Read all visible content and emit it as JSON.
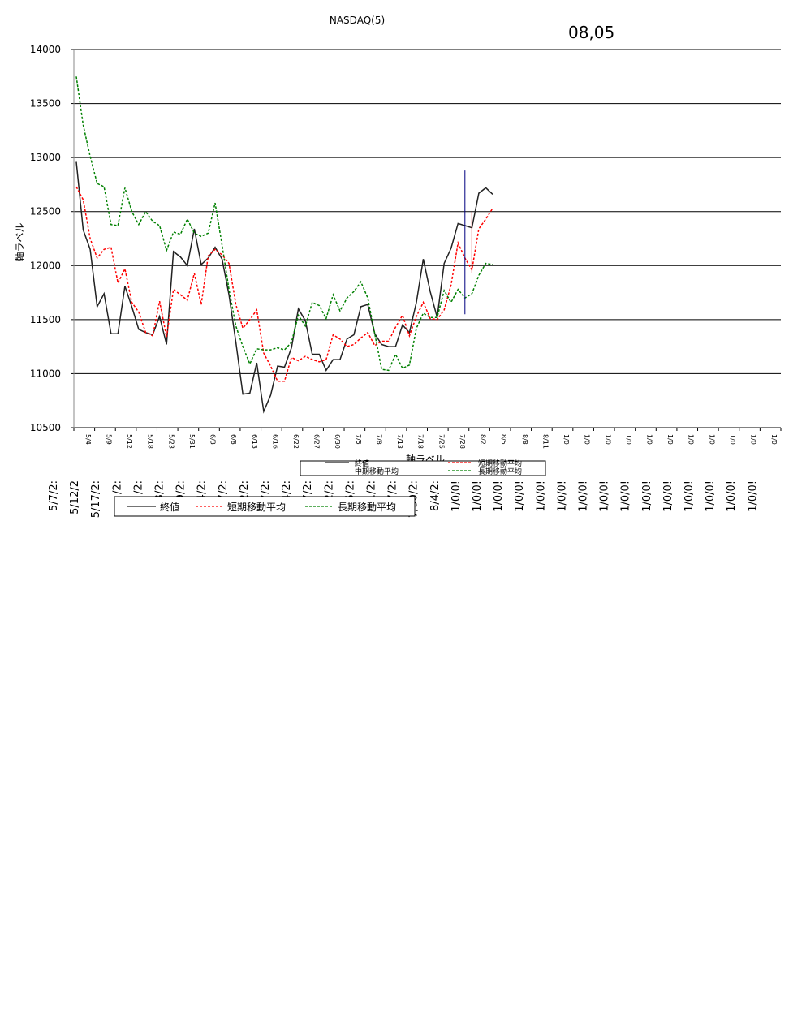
{
  "title": "NASDAQ(5)",
  "date_label": "08,05",
  "chart_data": {
    "type": "line",
    "title": "NASDAQ(5)",
    "ylabel": "軸ラベル",
    "xlabel": "軸ラベル",
    "ylim": [
      10500,
      14000
    ],
    "yticks": [
      "14000",
      "13500",
      "13000",
      "12500",
      "12000",
      "11500",
      "11000",
      "10500"
    ],
    "grid": true,
    "legend_position": "bottom",
    "x_tick_labels": [
      "5/4",
      "5/9",
      "5/12",
      "5/18",
      "5/23",
      "5/31",
      "6/3",
      "6/8",
      "6/13",
      "6/16",
      "6/22",
      "6/27",
      "6/30",
      "7/5",
      "7/8",
      "7/13",
      "7/18",
      "7/25",
      "7/28",
      "8/2",
      "8/5",
      "8/8",
      "8/11",
      "1/0",
      "1/0",
      "1/0",
      "1/0",
      "1/0",
      "1/0",
      "1/0",
      "1/0",
      "1/0",
      "1/0",
      "1/0"
    ],
    "bottom_tick_labels": [
      "5/7/2:",
      "5/12/2",
      "5/17/2:",
      "/2:",
      "/2:",
      "3/2:",
      "9/2:",
      "4/2:",
      "7/2:",
      "2/2:",
      "7/2:",
      "4/2:",
      "7/2:",
      "2/2:",
      "5/2:",
      "1/2:",
      "7/2:",
      "7/30/2:",
      "8/4/2:",
      "1/0/0!",
      "1/0/0!",
      "1/0/0!",
      "1/0/0!",
      "1/0/0!",
      "1/0/0!",
      "1/0/0!",
      "1/0/0!",
      "1/0/0!",
      "1/0/0!",
      "1/0/0!",
      "1/0/0!",
      "1/0/0!",
      "1/0/0!",
      "1/0/0!"
    ],
    "series": [
      {
        "name": "終値",
        "color": "#222222",
        "dash": "solid",
        "values": [
          12960,
          12330,
          12150,
          11620,
          11740,
          11370,
          11370,
          11810,
          11620,
          11410,
          11380,
          11360,
          11530,
          11270,
          12130,
          12080,
          12000,
          12340,
          12010,
          12070,
          12170,
          12060,
          11730,
          11290,
          10810,
          10820,
          11100,
          10650,
          10800,
          11070,
          11060,
          11240,
          11600,
          11490,
          11180,
          11180,
          11030,
          11130,
          11130,
          11320,
          11360,
          11620,
          11640,
          11370,
          11270,
          11250,
          11250,
          11450,
          11380,
          11660,
          12060,
          11760,
          11520,
          12020,
          12160,
          12390,
          12370,
          12350,
          12670,
          12720,
          12660
        ]
      },
      {
        "name": "短期移動平均",
        "color": "#ff0000",
        "dash": "dashed",
        "values": [
          12730,
          12610,
          12250,
          12070,
          12150,
          12170,
          11840,
          11970,
          11660,
          11570,
          11380,
          11350,
          11670,
          11340,
          11780,
          11730,
          11680,
          11930,
          11640,
          12090,
          12150,
          12100,
          12020,
          11640,
          11420,
          11500,
          11590,
          11190,
          11070,
          10930,
          10930,
          11150,
          11120,
          11160,
          11130,
          11110,
          11130,
          11360,
          11320,
          11250,
          11270,
          11330,
          11380,
          11260,
          11300,
          11300,
          11430,
          11540,
          11350,
          11530,
          11660,
          11510,
          11500,
          11590,
          11820,
          12210,
          12070,
          11960,
          12340,
          12430,
          12530
        ]
      },
      {
        "name": "長期移動平均",
        "color": "#008000",
        "dash": "dashed",
        "values": [
          13750,
          13300,
          13010,
          12760,
          12730,
          12380,
          12370,
          12720,
          12500,
          12380,
          12500,
          12410,
          12370,
          12140,
          12310,
          12290,
          12430,
          12300,
          12270,
          12300,
          12580,
          12190,
          11780,
          11440,
          11250,
          11090,
          11230,
          11220,
          11220,
          11240,
          11220,
          11290,
          11540,
          11440,
          11660,
          11630,
          11510,
          11730,
          11580,
          11700,
          11760,
          11850,
          11700,
          11370,
          11040,
          11030,
          11180,
          11050,
          11080,
          11420,
          11560,
          11520,
          11520,
          11770,
          11660,
          11780,
          11700,
          11740,
          11910,
          12020,
          12010
        ]
      }
    ],
    "markers": [
      {
        "x_index": 56,
        "low": 11550,
        "high": 12880,
        "color": "#000080"
      },
      {
        "x_index": 57,
        "low": 11930,
        "high": 12500,
        "color": "#cc0000"
      }
    ],
    "legend_small": {
      "labels": [
        "終値",
        "短期移動平均",
        "中期移動平均",
        "長期移動平均"
      ]
    },
    "legend_main": {
      "labels": [
        "終値",
        "短期移動平均",
        "長期移動平均"
      ]
    }
  }
}
